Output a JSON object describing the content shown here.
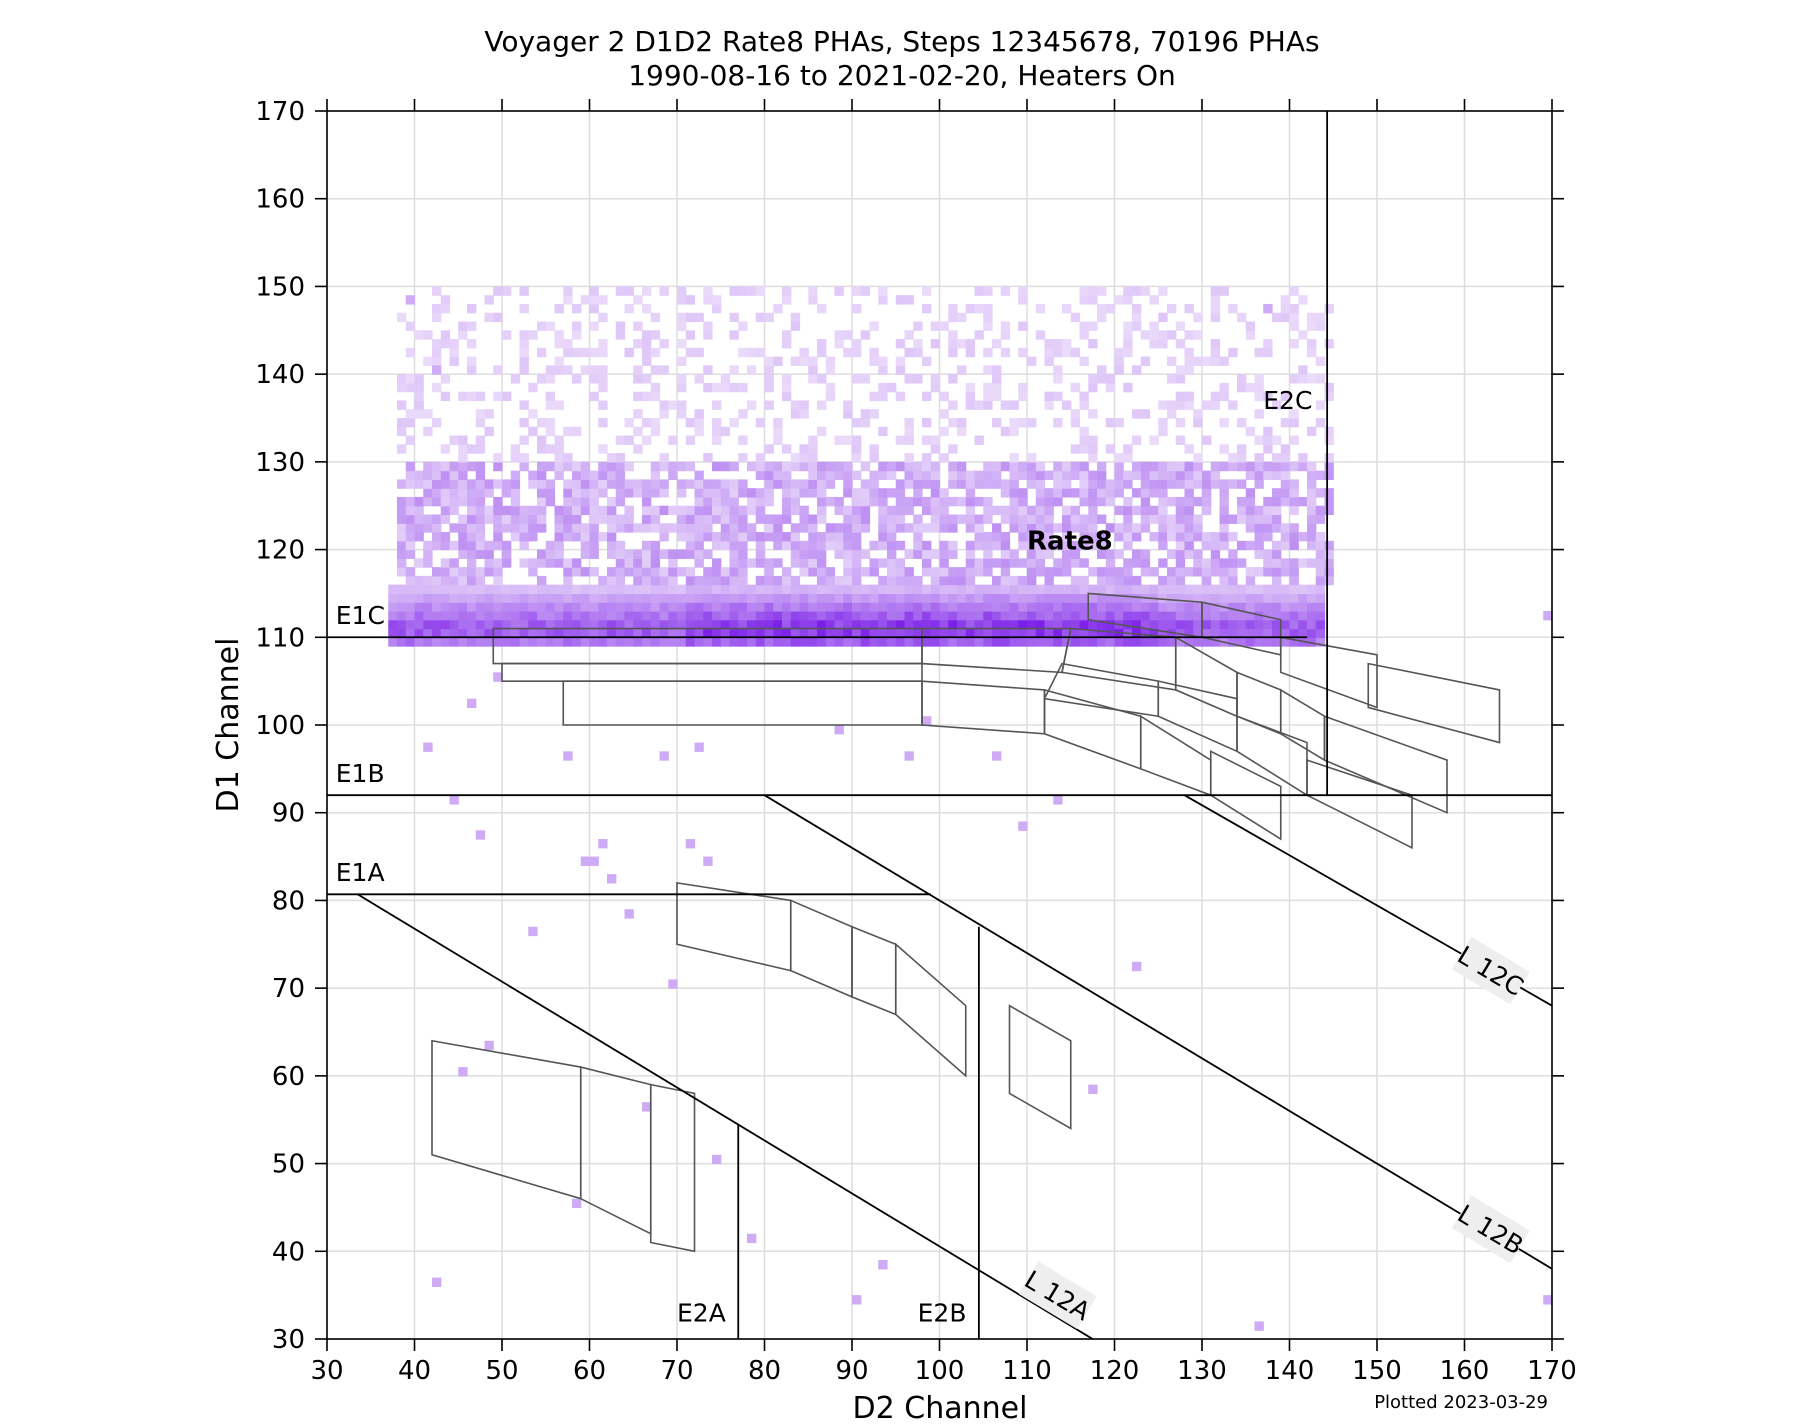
{
  "chart_data": {
    "type": "heatmap",
    "title": "Voyager 2 D1D2 Rate8 PHAs, Steps 12345678, 70196 PHAs",
    "subtitle": "1990-08-16 to 2021-02-20, Heaters On",
    "xlabel": "D2 Channel",
    "ylabel": "D1 Channel",
    "xlim": [
      30,
      170
    ],
    "ylim": [
      30,
      170
    ],
    "xticks": [
      30,
      40,
      50,
      60,
      70,
      80,
      90,
      100,
      110,
      120,
      130,
      140,
      150,
      160,
      170
    ],
    "yticks": [
      30,
      40,
      50,
      60,
      70,
      80,
      90,
      100,
      110,
      120,
      130,
      140,
      150,
      160,
      170
    ],
    "grid": true,
    "colormap": {
      "low": "#efe2fb",
      "high": "#7b1fe8"
    },
    "density_regions": [
      {
        "name": "dense band",
        "x": [
          37,
          144
        ],
        "y": [
          109,
          116
        ],
        "level": 0.85
      },
      {
        "name": "mid cloud",
        "x": [
          38,
          145
        ],
        "y": [
          116,
          130
        ],
        "level": 0.35
      },
      {
        "name": "sparse halo",
        "x": [
          38,
          145
        ],
        "y": [
          130,
          150
        ],
        "level": 0.12
      }
    ],
    "scatter_points": [
      [
        39,
        148
      ],
      [
        41,
        97
      ],
      [
        44,
        91
      ],
      [
        47,
        87
      ],
      [
        46,
        102
      ],
      [
        60,
        84
      ],
      [
        61,
        86
      ],
      [
        62,
        82
      ],
      [
        59,
        84
      ],
      [
        73,
        84
      ],
      [
        71,
        86
      ],
      [
        64,
        78
      ],
      [
        53,
        76
      ],
      [
        48,
        63
      ],
      [
        45,
        60
      ],
      [
        42,
        36
      ],
      [
        66,
        56
      ],
      [
        69,
        70
      ],
      [
        78,
        41
      ],
      [
        90,
        34
      ],
      [
        93,
        38
      ],
      [
        106,
        96
      ],
      [
        109,
        88
      ],
      [
        113,
        91
      ],
      [
        122,
        72
      ],
      [
        136,
        31
      ],
      [
        169,
        34
      ],
      [
        169,
        112
      ],
      [
        42,
        140
      ],
      [
        49,
        105
      ],
      [
        57,
        96
      ],
      [
        72,
        97
      ],
      [
        88,
        99
      ],
      [
        98,
        100
      ],
      [
        96,
        96
      ],
      [
        68,
        96
      ],
      [
        117,
        58
      ],
      [
        58,
        45
      ],
      [
        74,
        50
      ],
      [
        137,
        147
      ]
    ],
    "lines": [
      {
        "name": "E1C",
        "points": [
          [
            30,
            110
          ],
          [
            142,
            110
          ]
        ]
      },
      {
        "name": "E1B",
        "points": [
          [
            30,
            92
          ],
          [
            170,
            92
          ]
        ]
      },
      {
        "name": "E1A",
        "points": [
          [
            30,
            80.7
          ],
          [
            99,
            80.7
          ]
        ]
      },
      {
        "name": "E2C",
        "points": [
          [
            144.3,
            92
          ],
          [
            144.3,
            170
          ]
        ]
      },
      {
        "name": "E2B",
        "points": [
          [
            104.5,
            30
          ],
          [
            104.5,
            77
          ]
        ]
      },
      {
        "name": "E2A",
        "points": [
          [
            77,
            30
          ],
          [
            77,
            54.5
          ]
        ]
      },
      {
        "name": "L 12A",
        "points": [
          [
            33.5,
            80.7
          ],
          [
            117.5,
            30
          ]
        ]
      },
      {
        "name": "L 12B",
        "points": [
          [
            80,
            92
          ],
          [
            170,
            38
          ]
        ]
      },
      {
        "name": "L 12C",
        "points": [
          [
            128,
            92
          ],
          [
            170,
            68
          ]
        ]
      }
    ],
    "boxes": [
      [
        [
          49,
          111
        ],
        [
          98,
          111
        ],
        [
          98,
          107
        ],
        [
          49,
          107
        ]
      ],
      [
        [
          50,
          107
        ],
        [
          98,
          107
        ],
        [
          98,
          105
        ],
        [
          50,
          105
        ]
      ],
      [
        [
          57,
          105
        ],
        [
          98,
          105
        ],
        [
          98,
          100
        ],
        [
          57,
          100
        ]
      ],
      [
        [
          98,
          111
        ],
        [
          115,
          111
        ],
        [
          114,
          106
        ],
        [
          98,
          107
        ]
      ],
      [
        [
          98,
          105
        ],
        [
          112,
          104
        ],
        [
          112,
          99
        ],
        [
          98,
          100
        ]
      ],
      [
        [
          115,
          111
        ],
        [
          127,
          110
        ],
        [
          127,
          104
        ],
        [
          114,
          106
        ]
      ],
      [
        [
          114,
          107
        ],
        [
          125,
          105
        ],
        [
          125,
          101
        ],
        [
          112,
          103
        ]
      ],
      [
        [
          112,
          104
        ],
        [
          123,
          101
        ],
        [
          123,
          95
        ],
        [
          112,
          99
        ]
      ],
      [
        [
          117,
          115
        ],
        [
          130,
          114
        ],
        [
          130,
          110
        ],
        [
          117,
          112
        ]
      ],
      [
        [
          130,
          114
        ],
        [
          139,
          112
        ],
        [
          139,
          108
        ],
        [
          130,
          110
        ]
      ],
      [
        [
          127,
          110
        ],
        [
          134,
          106
        ],
        [
          134,
          101
        ],
        [
          127,
          104
        ]
      ],
      [
        [
          125,
          105
        ],
        [
          134,
          103
        ],
        [
          134,
          97
        ],
        [
          125,
          101
        ]
      ],
      [
        [
          123,
          101
        ],
        [
          131,
          96
        ],
        [
          131,
          92
        ],
        [
          123,
          95
        ]
      ],
      [
        [
          134,
          106
        ],
        [
          139,
          104
        ],
        [
          139,
          99
        ],
        [
          134,
          101
        ]
      ],
      [
        [
          134,
          101
        ],
        [
          142,
          98
        ],
        [
          142,
          92
        ],
        [
          134,
          97
        ]
      ],
      [
        [
          131,
          97
        ],
        [
          139,
          93
        ],
        [
          139,
          87
        ],
        [
          131,
          92
        ]
      ],
      [
        [
          139,
          110
        ],
        [
          150,
          108
        ],
        [
          150,
          102
        ],
        [
          139,
          106
        ]
      ],
      [
        [
          139,
          104
        ],
        [
          144,
          101
        ],
        [
          144,
          96
        ],
        [
          139,
          99
        ]
      ],
      [
        [
          144,
          101
        ],
        [
          158,
          96
        ],
        [
          158,
          90
        ],
        [
          144,
          96
        ]
      ],
      [
        [
          142,
          96
        ],
        [
          154,
          92
        ],
        [
          154,
          86
        ],
        [
          142,
          92
        ]
      ],
      [
        [
          149,
          107
        ],
        [
          164,
          104
        ],
        [
          164,
          98
        ],
        [
          149,
          102
        ]
      ],
      [
        [
          70,
          82
        ],
        [
          83,
          80
        ],
        [
          83,
          72
        ],
        [
          70,
          75
        ]
      ],
      [
        [
          83,
          80
        ],
        [
          90,
          77
        ],
        [
          90,
          69
        ],
        [
          83,
          72
        ]
      ],
      [
        [
          90,
          77
        ],
        [
          95,
          75
        ],
        [
          95,
          67
        ],
        [
          90,
          69
        ]
      ],
      [
        [
          95,
          75
        ],
        [
          103,
          68
        ],
        [
          103,
          60
        ],
        [
          95,
          67
        ]
      ],
      [
        [
          108,
          68
        ],
        [
          115,
          64
        ],
        [
          115,
          54
        ],
        [
          108,
          58
        ]
      ],
      [
        [
          42,
          64
        ],
        [
          59,
          61
        ],
        [
          59,
          46
        ],
        [
          42,
          51
        ]
      ],
      [
        [
          59,
          61
        ],
        [
          67,
          59
        ],
        [
          67,
          42
        ],
        [
          59,
          46
        ]
      ],
      [
        [
          67,
          59
        ],
        [
          72,
          58
        ],
        [
          72,
          40
        ],
        [
          67,
          41
        ]
      ]
    ],
    "annotations": [
      {
        "text": "E1C",
        "x": 31,
        "y": 111.5,
        "style": "normal",
        "rotate": 0
      },
      {
        "text": "E1B",
        "x": 31,
        "y": 93.5,
        "style": "normal",
        "rotate": 0
      },
      {
        "text": "E1A",
        "x": 31,
        "y": 82.2,
        "style": "normal",
        "rotate": 0
      },
      {
        "text": "E2C",
        "x": 137,
        "y": 136,
        "style": "normal",
        "rotate": 0
      },
      {
        "text": "E2A",
        "x": 70,
        "y": 32,
        "style": "normal",
        "rotate": 0
      },
      {
        "text": "E2B",
        "x": 97.5,
        "y": 32,
        "style": "normal",
        "rotate": 0
      },
      {
        "text": "Rate8",
        "x": 110,
        "y": 120,
        "style": "bold",
        "rotate": 0
      },
      {
        "text": "L 12A",
        "x": 113.5,
        "y": 35,
        "style": "box",
        "rotate": 31
      },
      {
        "text": "L 12B",
        "x": 163,
        "y": 42.5,
        "style": "box",
        "rotate": 31
      },
      {
        "text": "L 12C",
        "x": 163,
        "y": 72,
        "style": "box",
        "rotate": 31
      }
    ],
    "footnote": "Plotted 2023-03-29"
  }
}
